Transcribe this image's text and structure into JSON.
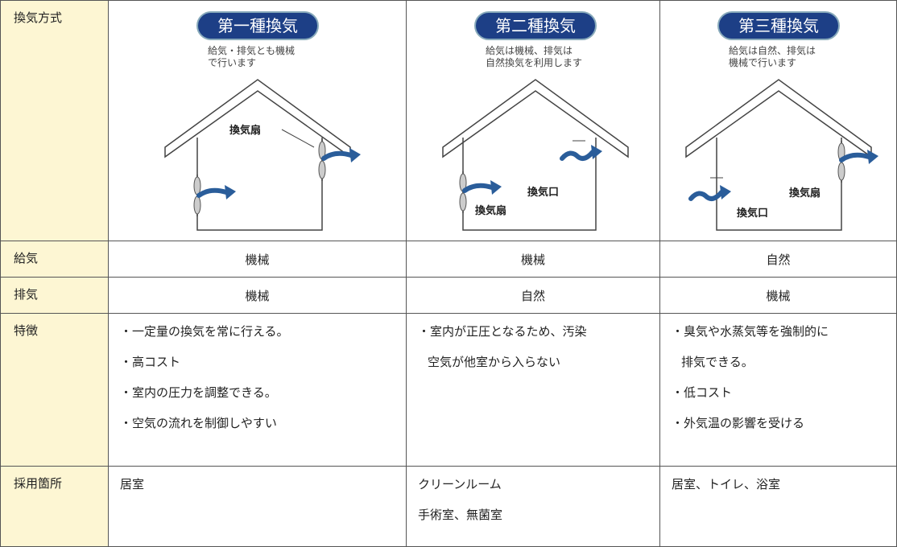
{
  "table": {
    "header": {
      "label": "換気方式",
      "columns": [
        {
          "title": "第一種換気",
          "description": [
            "給気・排気とも機械",
            "で行います"
          ],
          "labels": [
            "換気扇"
          ]
        },
        {
          "title": "第二種換気",
          "description": [
            "給気は機械、排気は",
            "自然換気を利用します"
          ],
          "labels": [
            "換気扇",
            "換気口"
          ]
        },
        {
          "title": "第三種換気",
          "description": [
            "給気は自然、排気は",
            "機械で行います"
          ],
          "labels": [
            "換気口",
            "換気扇"
          ]
        }
      ]
    },
    "rows": [
      {
        "label": "給気",
        "cells": [
          [
            "機械"
          ],
          [
            "機械"
          ],
          [
            "自然"
          ]
        ]
      },
      {
        "label": "排気",
        "cells": [
          [
            "機械"
          ],
          [
            "自然"
          ],
          [
            "機械"
          ]
        ]
      },
      {
        "label": "特徴",
        "cells": [
          [
            "・一定量の換気を常に行える。",
            "・高コスト",
            "・室内の圧力を調整できる。",
            "・空気の流れを制御しやすい"
          ],
          [
            "・室内が正圧となるため、汚染",
            "空気が他室から入らない"
          ],
          [
            "・臭気や水蒸気等を強制的に",
            "排気できる。",
            "・低コスト",
            "・外気温の影響を受ける"
          ]
        ]
      },
      {
        "label": "採用箇所",
        "cells": [
          [
            "居室"
          ],
          [
            "クリーンルーム",
            "手術室、無菌室"
          ],
          [
            "居室、トイレ、浴室"
          ]
        ]
      }
    ]
  }
}
